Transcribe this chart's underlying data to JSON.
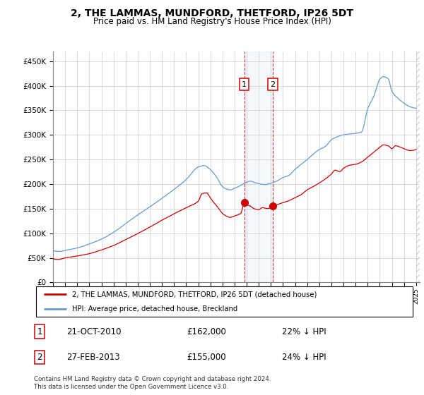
{
  "title": "2, THE LAMMAS, MUNDFORD, THETFORD, IP26 5DT",
  "subtitle": "Price paid vs. HM Land Registry's House Price Index (HPI)",
  "ylim": [
    0,
    470000
  ],
  "xlim_start": 1995.0,
  "xlim_end": 2025.3,
  "legend_line1": "2, THE LAMMAS, MUNDFORD, THETFORD, IP26 5DT (detached house)",
  "legend_line2": "HPI: Average price, detached house, Breckland",
  "sale1_label": "1",
  "sale1_date": "21-OCT-2010",
  "sale1_price": "£162,000",
  "sale1_pct": "22% ↓ HPI",
  "sale1_x": 2010.8,
  "sale1_y": 162000,
  "sale2_label": "2",
  "sale2_date": "27-FEB-2013",
  "sale2_price": "£155,000",
  "sale2_pct": "24% ↓ HPI",
  "sale2_x": 2013.15,
  "sale2_y": 155000,
  "hpi_color": "#6699cc",
  "price_color": "#cc0000",
  "footer": "Contains HM Land Registry data © Crown copyright and database right 2024.\nThis data is licensed under the Open Government Licence v3.0."
}
